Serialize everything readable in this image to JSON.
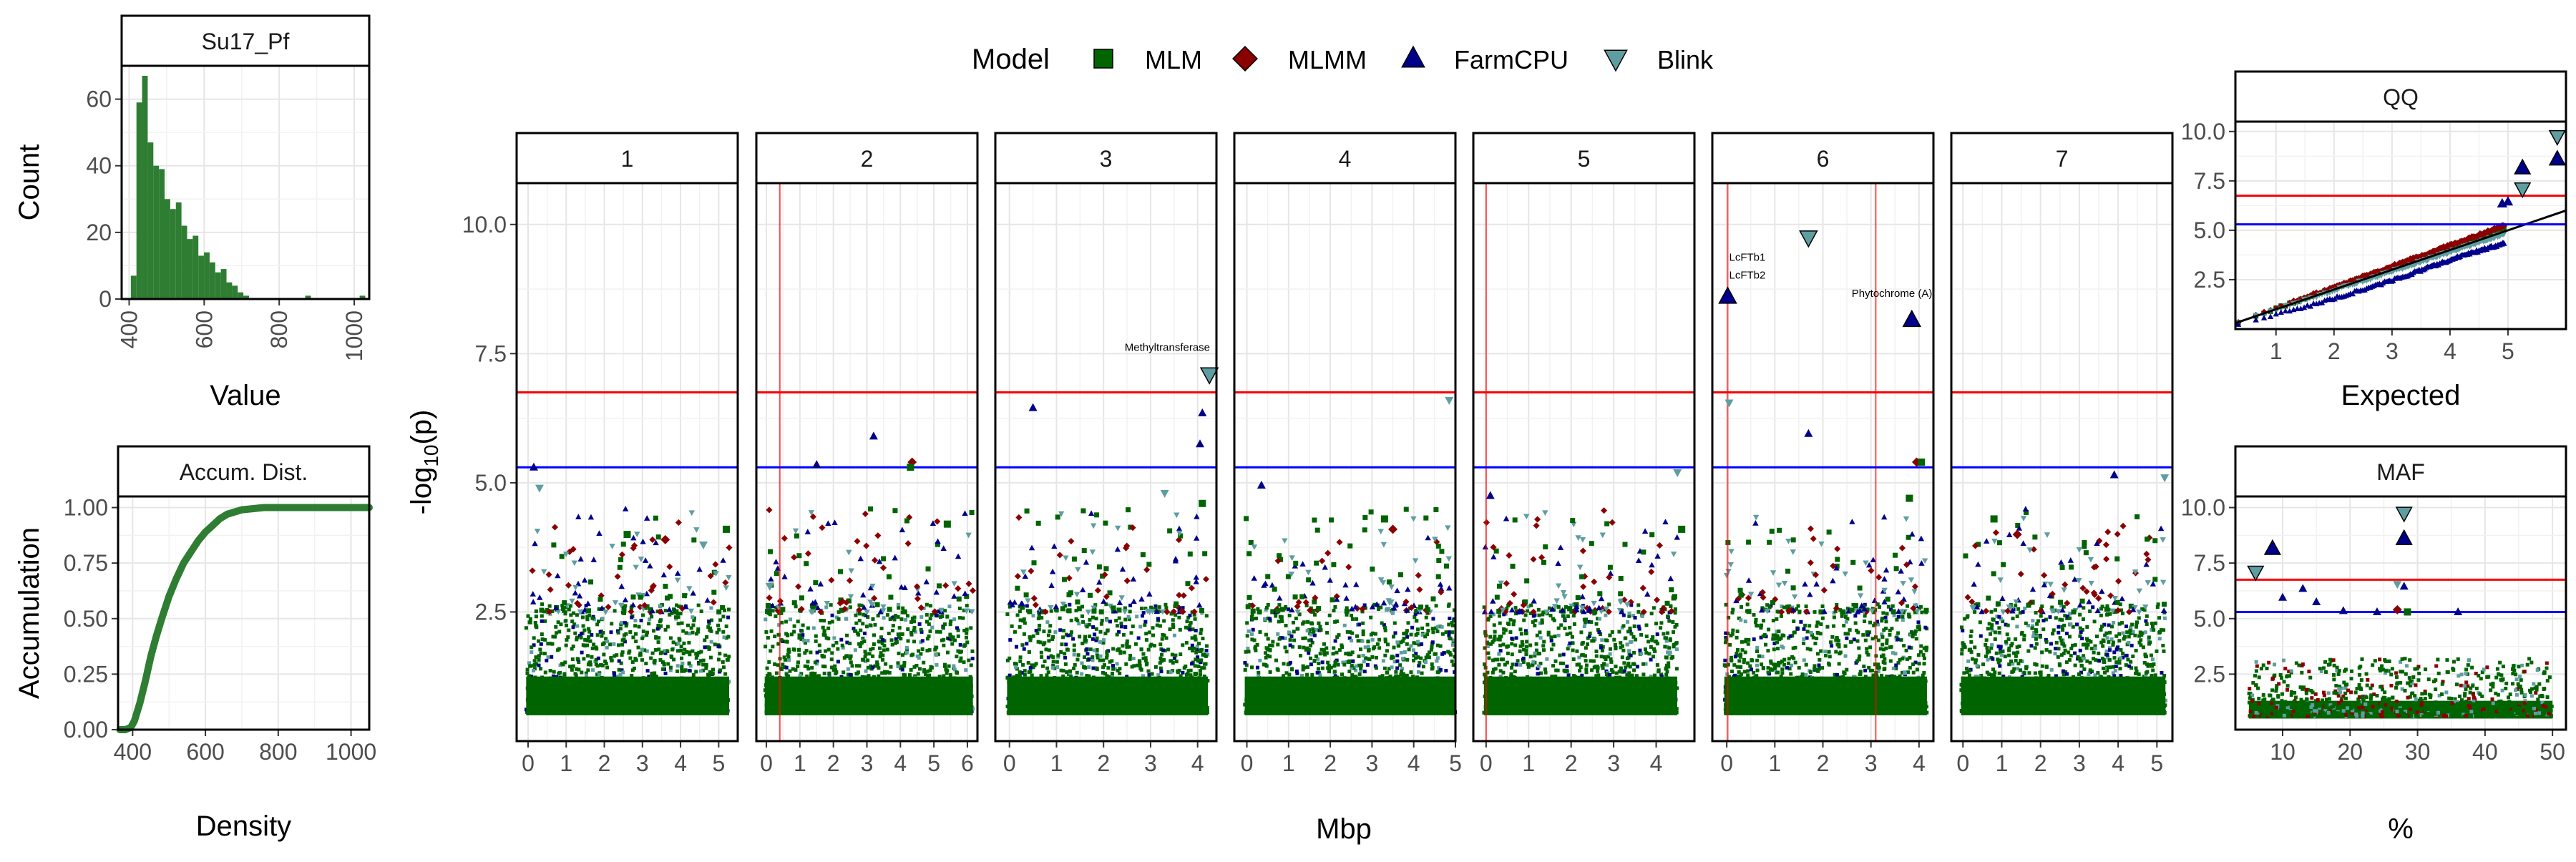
{
  "legend": {
    "title": "Model",
    "items": [
      {
        "label": "MLM",
        "shape": "square",
        "color": "#006400"
      },
      {
        "label": "MLMM",
        "shape": "diamond",
        "color": "#8B0000"
      },
      {
        "label": "FarmCPU",
        "shape": "triangle-up",
        "color": "#00008B"
      },
      {
        "label": "Blink",
        "shape": "triangle-down",
        "color": "#5F9EA0"
      }
    ]
  },
  "colors": {
    "significance": "#FF0000",
    "suggestive": "#0000FF",
    "histogram": "#2E7D32",
    "panel_border": "#000000"
  },
  "chart_data": [
    {
      "id": "histogram",
      "type": "bar",
      "strip": "Su17_Pf",
      "xlabel": "Value",
      "ylabel": "Count",
      "xlim": [
        380,
        1040
      ],
      "ylim": [
        0,
        70
      ],
      "xticks": [
        400,
        600,
        800,
        1000
      ],
      "yticks": [
        0,
        20,
        40,
        60
      ],
      "bin_width": 15,
      "bins": [
        {
          "x": 412,
          "count": 7
        },
        {
          "x": 427,
          "count": 59
        },
        {
          "x": 442,
          "count": 67
        },
        {
          "x": 457,
          "count": 47
        },
        {
          "x": 472,
          "count": 40
        },
        {
          "x": 487,
          "count": 39
        },
        {
          "x": 502,
          "count": 30
        },
        {
          "x": 517,
          "count": 27
        },
        {
          "x": 532,
          "count": 29
        },
        {
          "x": 547,
          "count": 22
        },
        {
          "x": 562,
          "count": 18
        },
        {
          "x": 577,
          "count": 19
        },
        {
          "x": 592,
          "count": 13
        },
        {
          "x": 607,
          "count": 14
        },
        {
          "x": 622,
          "count": 11
        },
        {
          "x": 637,
          "count": 8
        },
        {
          "x": 652,
          "count": 9
        },
        {
          "x": 667,
          "count": 5
        },
        {
          "x": 682,
          "count": 4
        },
        {
          "x": 697,
          "count": 2
        },
        {
          "x": 712,
          "count": 1
        },
        {
          "x": 877,
          "count": 1
        },
        {
          "x": 1022,
          "count": 1
        }
      ]
    },
    {
      "id": "accumulation",
      "type": "line",
      "strip": "Accum. Dist.",
      "xlabel": "Density",
      "ylabel": "Accumulation",
      "xlim": [
        360,
        1050
      ],
      "ylim": [
        0,
        1.05
      ],
      "xticks": [
        400,
        600,
        800,
        1000
      ],
      "yticks": [
        0.0,
        0.25,
        0.5,
        0.75,
        1.0
      ],
      "ytick_labels": [
        "0.00",
        "0.25",
        "0.50",
        "0.75",
        "1.00"
      ],
      "x": [
        365,
        380,
        395,
        405,
        420,
        435,
        450,
        465,
        480,
        500,
        520,
        540,
        560,
        580,
        600,
        620,
        640,
        660,
        680,
        700,
        730,
        760,
        800,
        900,
        1000,
        1050
      ],
      "y": [
        0.0,
        0.0,
        0.01,
        0.04,
        0.12,
        0.22,
        0.33,
        0.42,
        0.5,
        0.6,
        0.68,
        0.75,
        0.8,
        0.85,
        0.89,
        0.92,
        0.95,
        0.97,
        0.98,
        0.99,
        0.995,
        1.0,
        1.0,
        1.0,
        1.0,
        1.0
      ]
    },
    {
      "id": "manhattan",
      "type": "scatter",
      "xlabel": "Mbp",
      "ylabel": "-log",
      "ylabel_sub": "10",
      "ylabel_suffix": "(p)",
      "ylim": [
        0,
        10.8
      ],
      "yticks": [
        2.5,
        5.0,
        7.5,
        10.0
      ],
      "ytick_labels": [
        "2.5",
        "5.0",
        "7.5",
        "10.0"
      ],
      "significance_threshold": 6.75,
      "suggestive_threshold": 5.3,
      "panels": [
        {
          "strip": "1",
          "xlim": [
            -0.3,
            5.5
          ],
          "xticks": [
            0,
            1,
            2,
            3,
            4,
            5
          ],
          "vlines": [],
          "peaks": [
            {
              "model": "FarmCPU",
              "x": 0.15,
              "y": 5.3
            },
            {
              "model": "Blink",
              "x": 0.3,
              "y": 4.9
            },
            {
              "model": "MLM",
              "x": 5.2,
              "y": 4.1
            },
            {
              "model": "MLM",
              "x": 2.6,
              "y": 4.0
            },
            {
              "model": "MLMM",
              "x": 3.6,
              "y": 3.9
            },
            {
              "model": "Blink",
              "x": 4.6,
              "y": 3.8
            }
          ]
        },
        {
          "strip": "2",
          "xlim": [
            -0.3,
            6.3
          ],
          "xticks": [
            0,
            1,
            2,
            3,
            4,
            5,
            6
          ],
          "vlines": [
            0.4
          ],
          "peaks": [
            {
              "model": "FarmCPU",
              "x": 1.5,
              "y": 5.35
            },
            {
              "model": "FarmCPU",
              "x": 3.2,
              "y": 5.9
            },
            {
              "model": "MLMM",
              "x": 4.35,
              "y": 5.4
            },
            {
              "model": "MLM",
              "x": 4.3,
              "y": 5.3
            },
            {
              "model": "MLM",
              "x": 5.4,
              "y": 4.2
            },
            {
              "model": "Blink",
              "x": 0.1,
              "y": 3.0
            }
          ]
        },
        {
          "strip": "3",
          "xlim": [
            -0.3,
            4.4
          ],
          "xticks": [
            0,
            1,
            2,
            3,
            4
          ],
          "vlines": [],
          "peaks": [
            {
              "model": "FarmCPU",
              "x": 0.5,
              "y": 6.45
            },
            {
              "model": "Blink",
              "x": 4.25,
              "y": 7.1
            },
            {
              "model": "FarmCPU",
              "x": 4.1,
              "y": 6.35
            },
            {
              "model": "FarmCPU",
              "x": 4.05,
              "y": 5.75
            },
            {
              "model": "MLM",
              "x": 4.1,
              "y": 4.6
            },
            {
              "model": "Blink",
              "x": 3.3,
              "y": 4.8
            }
          ],
          "annotations": [
            {
              "text": "Methyltransferase",
              "x": 2.45,
              "y": 7.55
            }
          ]
        },
        {
          "strip": "4",
          "xlim": [
            -0.3,
            5.0
          ],
          "xticks": [
            0,
            1,
            2,
            3,
            4,
            5
          ],
          "vlines": [],
          "peaks": [
            {
              "model": "Blink",
              "x": 4.85,
              "y": 6.6
            },
            {
              "model": "FarmCPU",
              "x": 0.35,
              "y": 4.95
            },
            {
              "model": "MLM",
              "x": 3.3,
              "y": 4.3
            },
            {
              "model": "MLMM",
              "x": 3.5,
              "y": 4.1
            }
          ]
        },
        {
          "strip": "5",
          "xlim": [
            -0.3,
            4.9
          ],
          "xticks": [
            0,
            1,
            2,
            3,
            4
          ],
          "vlines": [
            0.0
          ],
          "peaks": [
            {
              "model": "FarmCPU",
              "x": 0.1,
              "y": 4.75
            },
            {
              "model": "Blink",
              "x": 4.5,
              "y": 5.2
            },
            {
              "model": "MLM",
              "x": 4.6,
              "y": 4.1
            }
          ]
        },
        {
          "strip": "6",
          "xlim": [
            -0.3,
            4.3
          ],
          "xticks": [
            0,
            1,
            2,
            3,
            4
          ],
          "vlines": [
            0.02,
            3.1
          ],
          "peaks": [
            {
              "model": "FarmCPU",
              "x": 0.02,
              "y": 8.6
            },
            {
              "model": "Blink",
              "x": 1.7,
              "y": 9.75
            },
            {
              "model": "FarmCPU",
              "x": 3.85,
              "y": 8.15
            },
            {
              "model": "Blink",
              "x": 0.05,
              "y": 6.55
            },
            {
              "model": "FarmCPU",
              "x": 1.7,
              "y": 5.95
            },
            {
              "model": "MLMM",
              "x": 3.95,
              "y": 5.4
            },
            {
              "model": "MLM",
              "x": 4.05,
              "y": 5.4
            },
            {
              "model": "MLM",
              "x": 3.8,
              "y": 4.7
            }
          ],
          "annotations": [
            {
              "text": "LcFTb1",
              "x": 0.05,
              "y": 9.3
            },
            {
              "text": "LcFTb2",
              "x": 0.05,
              "y": 8.95
            },
            {
              "text": "Phytochrome (A)",
              "x": 2.6,
              "y": 8.6
            }
          ]
        },
        {
          "strip": "7",
          "xlim": [
            -0.3,
            5.4
          ],
          "xticks": [
            0,
            1,
            2,
            3,
            4,
            5
          ],
          "vlines": [],
          "peaks": [
            {
              "model": "FarmCPU",
              "x": 3.9,
              "y": 5.15
            },
            {
              "model": "Blink",
              "x": 5.2,
              "y": 5.1
            },
            {
              "model": "MLM",
              "x": 0.8,
              "y": 4.3
            },
            {
              "model": "MLMM",
              "x": 1.4,
              "y": 4.0
            }
          ]
        }
      ]
    },
    {
      "id": "qq",
      "type": "scatter",
      "strip": "QQ",
      "xlabel": "Expected",
      "xlim": [
        0.3,
        6.0
      ],
      "ylim": [
        0,
        10.5
      ],
      "xticks": [
        1,
        2,
        3,
        4,
        5
      ],
      "yticks": [
        2.5,
        5.0,
        7.5,
        10.0
      ],
      "ytick_labels": [
        "2.5",
        "5.0",
        "7.5",
        "10.0"
      ],
      "significance_threshold": 6.75,
      "suggestive_threshold": 5.3,
      "top_points": [
        {
          "model": "Blink",
          "x": 5.85,
          "y": 9.75
        },
        {
          "model": "FarmCPU",
          "x": 5.85,
          "y": 8.6
        },
        {
          "model": "FarmCPU",
          "x": 5.25,
          "y": 8.15
        },
        {
          "model": "Blink",
          "x": 5.25,
          "y": 7.1
        },
        {
          "model": "FarmCPU",
          "x": 5.0,
          "y": 6.45
        },
        {
          "model": "FarmCPU",
          "x": 4.9,
          "y": 6.35
        }
      ]
    },
    {
      "id": "maf",
      "type": "scatter",
      "strip": "MAF",
      "xlabel": "%",
      "xlim": [
        3,
        52
      ],
      "ylim": [
        0,
        10.5
      ],
      "xticks": [
        10,
        20,
        30,
        40,
        50
      ],
      "yticks": [
        2.5,
        5.0,
        7.5,
        10.0
      ],
      "ytick_labels": [
        "2.5",
        "5.0",
        "7.5",
        "10.0"
      ],
      "significance_threshold": 6.75,
      "suggestive_threshold": 5.3,
      "top_points": [
        {
          "model": "Blink",
          "x": 28,
          "y": 9.75
        },
        {
          "model": "FarmCPU",
          "x": 28,
          "y": 8.6
        },
        {
          "model": "FarmCPU",
          "x": 8.5,
          "y": 8.15
        },
        {
          "model": "Blink",
          "x": 6,
          "y": 7.1
        },
        {
          "model": "FarmCPU",
          "x": 28,
          "y": 6.45
        },
        {
          "model": "Blink",
          "x": 27,
          "y": 6.55
        },
        {
          "model": "FarmCPU",
          "x": 13,
          "y": 6.35
        },
        {
          "model": "FarmCPU",
          "x": 10,
          "y": 5.95
        },
        {
          "model": "FarmCPU",
          "x": 15,
          "y": 5.75
        },
        {
          "model": "FarmCPU",
          "x": 19,
          "y": 5.35
        },
        {
          "model": "FarmCPU",
          "x": 24,
          "y": 5.3
        },
        {
          "model": "FarmCPU",
          "x": 36,
          "y": 5.3
        },
        {
          "model": "MLMM",
          "x": 27,
          "y": 5.4
        },
        {
          "model": "MLM",
          "x": 28.5,
          "y": 5.3
        }
      ]
    }
  ]
}
